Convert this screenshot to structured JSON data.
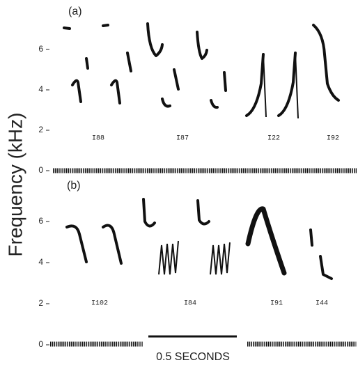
{
  "y_axis_label": "Frequency (kHz)",
  "panels": [
    {
      "label": "(a)",
      "yticks": [
        0,
        2,
        4,
        6
      ],
      "songs": [
        "I88",
        "I87",
        "I22",
        "I92"
      ]
    },
    {
      "label": "(b)",
      "yticks": [
        0,
        2,
        4,
        6
      ],
      "songs": [
        "I102",
        "I84",
        "I91",
        "I44"
      ]
    }
  ],
  "scale_bar": "0.5 SECONDS"
}
